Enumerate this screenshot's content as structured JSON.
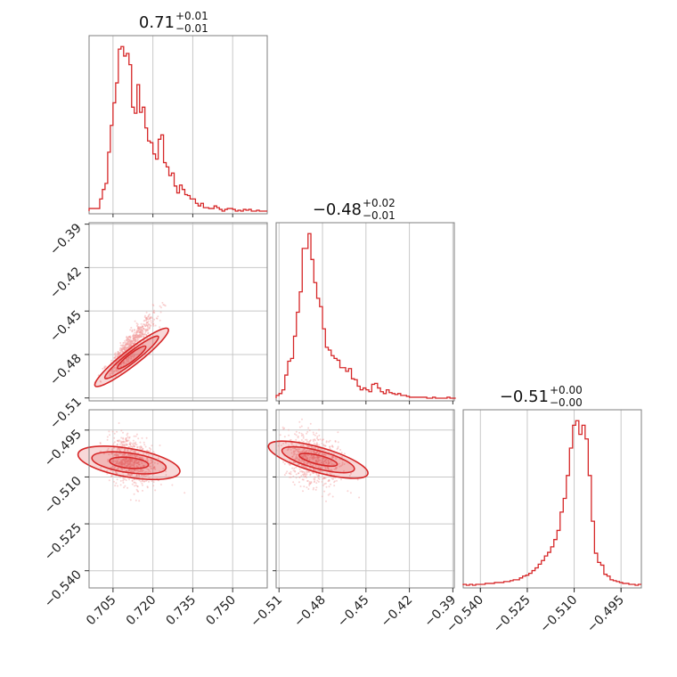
{
  "chart_data": {
    "type": "corner",
    "color": "#d62728",
    "params": [
      {
        "median": 0.71,
        "plus": 0.01,
        "minus": 0.01,
        "title_main": "0.71",
        "title_plus": "+0.01",
        "title_minus": "−0.01",
        "range": [
          0.696,
          0.763
        ],
        "ticks": [
          0.705,
          0.72,
          0.735,
          0.75
        ],
        "tick_labels": [
          "0.705",
          "0.720",
          "0.735",
          "0.750"
        ],
        "hist": {
          "x": [
            0.696,
            0.697,
            0.698,
            0.699,
            0.7,
            0.701,
            0.702,
            0.703,
            0.704,
            0.705,
            0.706,
            0.707,
            0.708,
            0.709,
            0.71,
            0.711,
            0.712,
            0.713,
            0.714,
            0.715,
            0.716,
            0.717,
            0.718,
            0.719,
            0.72,
            0.721,
            0.722,
            0.723,
            0.724,
            0.725,
            0.726,
            0.727,
            0.728,
            0.729,
            0.73,
            0.731,
            0.732,
            0.733,
            0.734,
            0.735,
            0.736,
            0.737,
            0.738,
            0.739,
            0.74,
            0.741,
            0.742,
            0.743,
            0.744,
            0.745,
            0.746,
            0.747,
            0.748,
            0.749,
            0.75,
            0.751,
            0.752,
            0.753,
            0.754,
            0.755,
            0.756,
            0.757,
            0.758,
            0.759,
            0.76,
            0.761,
            0.762
          ],
          "y": [
            3,
            3,
            3,
            3,
            14,
            25,
            32,
            68,
            99,
            125,
            148,
            187,
            190,
            179,
            182,
            169,
            120,
            113,
            146,
            114,
            120,
            96,
            81,
            79,
            66,
            60,
            83,
            88,
            56,
            51,
            41,
            44,
            29,
            21,
            30,
            25,
            19,
            18,
            14,
            14,
            9,
            6,
            9,
            4,
            4,
            3,
            3,
            6,
            4,
            2,
            0,
            2,
            3,
            3,
            2,
            0,
            1,
            0,
            2,
            1,
            2,
            0,
            0,
            1,
            0,
            0,
            0
          ]
        }
      },
      {
        "median": -0.48,
        "plus": 0.02,
        "minus": 0.01,
        "title_main": "−0.48",
        "title_plus": "+0.02",
        "title_minus": "−0.01",
        "range": [
          -0.512,
          -0.389
        ],
        "ticks": [
          -0.51,
          -0.48,
          -0.45,
          -0.42,
          -0.39
        ],
        "tick_labels": [
          "−0.51",
          "−0.48",
          "−0.45",
          "−0.42",
          "−0.39"
        ],
        "hist": {
          "x": [
            -0.512,
            -0.51,
            -0.508,
            -0.506,
            -0.504,
            -0.502,
            -0.5,
            -0.498,
            -0.496,
            -0.494,
            -0.492,
            -0.49,
            -0.488,
            -0.486,
            -0.484,
            -0.482,
            -0.48,
            -0.478,
            -0.476,
            -0.474,
            -0.472,
            -0.47,
            -0.468,
            -0.466,
            -0.464,
            -0.462,
            -0.46,
            -0.458,
            -0.456,
            -0.454,
            -0.452,
            -0.45,
            -0.448,
            -0.446,
            -0.444,
            -0.442,
            -0.44,
            -0.438,
            -0.436,
            -0.434,
            -0.432,
            -0.43,
            -0.428,
            -0.426,
            -0.424,
            -0.422,
            -0.42,
            -0.418,
            -0.416,
            -0.414,
            -0.412,
            -0.41,
            -0.408,
            -0.406,
            -0.404,
            -0.402,
            -0.4,
            -0.398,
            -0.396,
            -0.394,
            -0.392,
            -0.39
          ],
          "y": [
            3,
            5,
            9,
            25,
            40,
            43,
            67,
            93,
            115,
            162,
            162,
            178,
            150,
            125,
            108,
            99,
            75,
            55,
            52,
            46,
            43,
            41,
            33,
            33,
            29,
            32,
            21,
            20,
            13,
            9,
            11,
            9,
            7,
            15,
            16,
            11,
            7,
            5,
            9,
            6,
            5,
            4,
            5,
            3,
            3,
            2,
            1,
            1,
            1,
            1,
            1,
            1,
            0,
            0,
            1,
            0,
            0,
            0,
            0,
            1,
            0,
            0
          ]
        }
      },
      {
        "median": -0.51,
        "plus": 0.0,
        "minus": 0.0,
        "title_main": "−0.51",
        "title_plus": "+0.00",
        "title_minus": "−0.00",
        "range": [
          -0.5455,
          -0.4885
        ],
        "ticks": [
          -0.54,
          -0.525,
          -0.51,
          -0.495
        ],
        "tick_labels": [
          "−0.540",
          "−0.525",
          "−0.510",
          "−0.495"
        ],
        "hist": {
          "x": [
            -0.5455,
            -0.5445,
            -0.5435,
            -0.5425,
            -0.5415,
            -0.5405,
            -0.5395,
            -0.5385,
            -0.5375,
            -0.5365,
            -0.5355,
            -0.5345,
            -0.5335,
            -0.5325,
            -0.5315,
            -0.5305,
            -0.5295,
            -0.5285,
            -0.5275,
            -0.5265,
            -0.5255,
            -0.5245,
            -0.5235,
            -0.5225,
            -0.5215,
            -0.5205,
            -0.5195,
            -0.5185,
            -0.5175,
            -0.5165,
            -0.5155,
            -0.5145,
            -0.5135,
            -0.5125,
            -0.5115,
            -0.5105,
            -0.5095,
            -0.5085,
            -0.5075,
            -0.5065,
            -0.5055,
            -0.5045,
            -0.5035,
            -0.5025,
            -0.5015,
            -0.5005,
            -0.4995,
            -0.4985,
            -0.4975,
            -0.4965,
            -0.4955,
            -0.4945,
            -0.4935,
            -0.4925,
            -0.4915,
            -0.4905,
            -0.4895
          ],
          "y": [
            1,
            0,
            1,
            0,
            1,
            1,
            1,
            2,
            2,
            2,
            3,
            3,
            3,
            4,
            4,
            5,
            6,
            6,
            8,
            10,
            11,
            13,
            16,
            19,
            23,
            27,
            32,
            36,
            42,
            50,
            60,
            80,
            95,
            120,
            150,
            175,
            180,
            165,
            175,
            160,
            120,
            70,
            35,
            25,
            22,
            12,
            10,
            6,
            5,
            4,
            3,
            2,
            2,
            1,
            1,
            0,
            1
          ]
        }
      }
    ],
    "grid": true
  }
}
